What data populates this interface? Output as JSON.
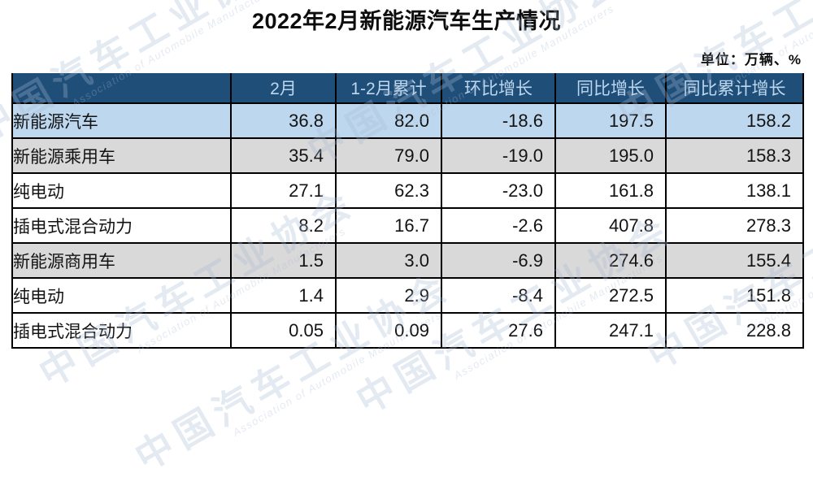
{
  "page": {
    "title": "2022年2月新能源汽车生产情况",
    "unit_label": "单位：万辆、%"
  },
  "watermark": {
    "cn": "中国汽车工业协会",
    "en": "Association of Automobile Manufacturers"
  },
  "colors": {
    "header_bg": "#1F4E79",
    "header_text": "#BDD7EE",
    "row_highlight_blue": "#BDD7EE",
    "row_highlight_gray": "#D9D9D9",
    "row_white": "#FFFFFF",
    "border": "#000000"
  },
  "chart_data": {
    "type": "table",
    "title": "2022年2月新能源汽车生产情况",
    "unit": "万辆、%",
    "columns": [
      "",
      "2月",
      "1-2月累计",
      "环比增长",
      "同比增长",
      "同比累计增长"
    ],
    "rows": [
      {
        "label": "新能源汽车",
        "indent": 0,
        "emphasis": "blue",
        "values": [
          "36.8",
          "82.0",
          "-18.6",
          "197.5",
          "158.2"
        ]
      },
      {
        "label": "新能源乘用车",
        "indent": 1,
        "emphasis": "gray",
        "values": [
          "35.4",
          "79.0",
          "-19.0",
          "195.0",
          "158.3"
        ]
      },
      {
        "label": "纯电动",
        "indent": 2,
        "emphasis": "white",
        "values": [
          "27.1",
          "62.3",
          "-23.0",
          "161.8",
          "138.1"
        ]
      },
      {
        "label": "插电式混合动力",
        "indent": 2,
        "emphasis": "white",
        "values": [
          "8.2",
          "16.7",
          "-2.6",
          "407.8",
          "278.3"
        ]
      },
      {
        "label": "新能源商用车",
        "indent": 1,
        "emphasis": "gray",
        "values": [
          "1.5",
          "3.0",
          "-6.9",
          "274.6",
          "155.4"
        ]
      },
      {
        "label": "纯电动",
        "indent": 2,
        "emphasis": "white",
        "values": [
          "1.4",
          "2.9",
          "-8.4",
          "272.5",
          "151.8"
        ]
      },
      {
        "label": "插电式混合动力",
        "indent": 2,
        "emphasis": "white",
        "values": [
          "0.05",
          "0.09",
          "27.6",
          "247.1",
          "228.8"
        ]
      }
    ]
  }
}
